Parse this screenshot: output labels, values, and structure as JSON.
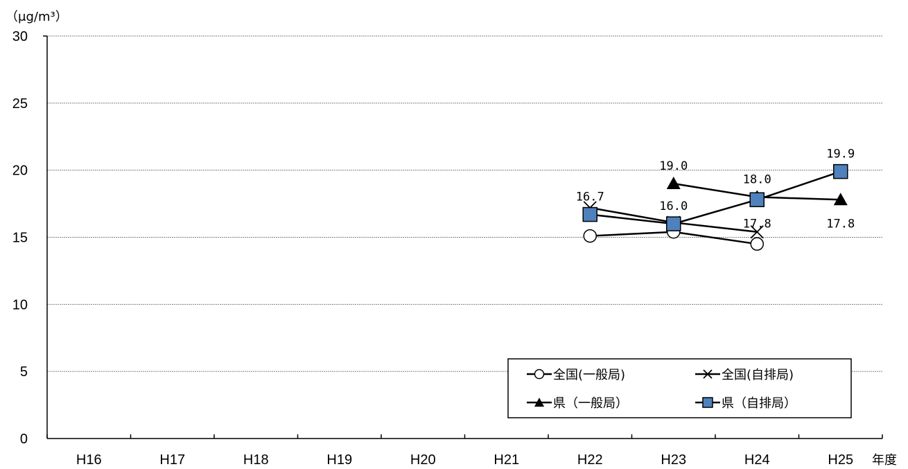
{
  "chart_data": {
    "type": "line",
    "y_unit": "（μg/m³）",
    "x_unit": "年度",
    "categories": [
      "H16",
      "H17",
      "H18",
      "H19",
      "H20",
      "H21",
      "H22",
      "H23",
      "H24",
      "H25"
    ],
    "ylim": [
      0,
      30
    ],
    "yticks": [
      "0",
      "5",
      "10",
      "15",
      "20",
      "25",
      "30"
    ],
    "grid": true,
    "legend_position": "bottom-right",
    "series": [
      {
        "name": "全国(一般局)",
        "marker": "circle-open",
        "color": "#000000",
        "values": [
          null,
          null,
          null,
          null,
          null,
          null,
          15.1,
          15.4,
          14.5,
          null
        ]
      },
      {
        "name": "全国(自排局)",
        "marker": "x",
        "color": "#000000",
        "values": [
          null,
          null,
          null,
          null,
          null,
          null,
          17.2,
          16.1,
          15.4,
          null
        ]
      },
      {
        "name": "県（一般局）",
        "marker": "triangle-filled",
        "color": "#000000",
        "values": [
          null,
          null,
          null,
          null,
          null,
          null,
          null,
          19.0,
          18.0,
          17.8
        ]
      },
      {
        "name": "県（自排局）",
        "marker": "square-filled",
        "color": "#4f81bd",
        "values": [
          null,
          null,
          null,
          null,
          null,
          null,
          16.7,
          16.0,
          17.8,
          19.9
        ]
      }
    ],
    "data_labels": [
      {
        "text": "16.7",
        "series": 3,
        "index": 6,
        "pos": "above"
      },
      {
        "text": "16.0",
        "series": 3,
        "index": 7,
        "pos": "above"
      },
      {
        "text": "19.0",
        "series": 2,
        "index": 7,
        "pos": "above"
      },
      {
        "text": "18.0",
        "series": 2,
        "index": 8,
        "pos": "above"
      },
      {
        "text": "17.8",
        "series": 3,
        "index": 8,
        "pos": "below"
      },
      {
        "text": "19.9",
        "series": 3,
        "index": 9,
        "pos": "above"
      },
      {
        "text": "17.8",
        "series": 2,
        "index": 9,
        "pos": "below"
      }
    ]
  }
}
